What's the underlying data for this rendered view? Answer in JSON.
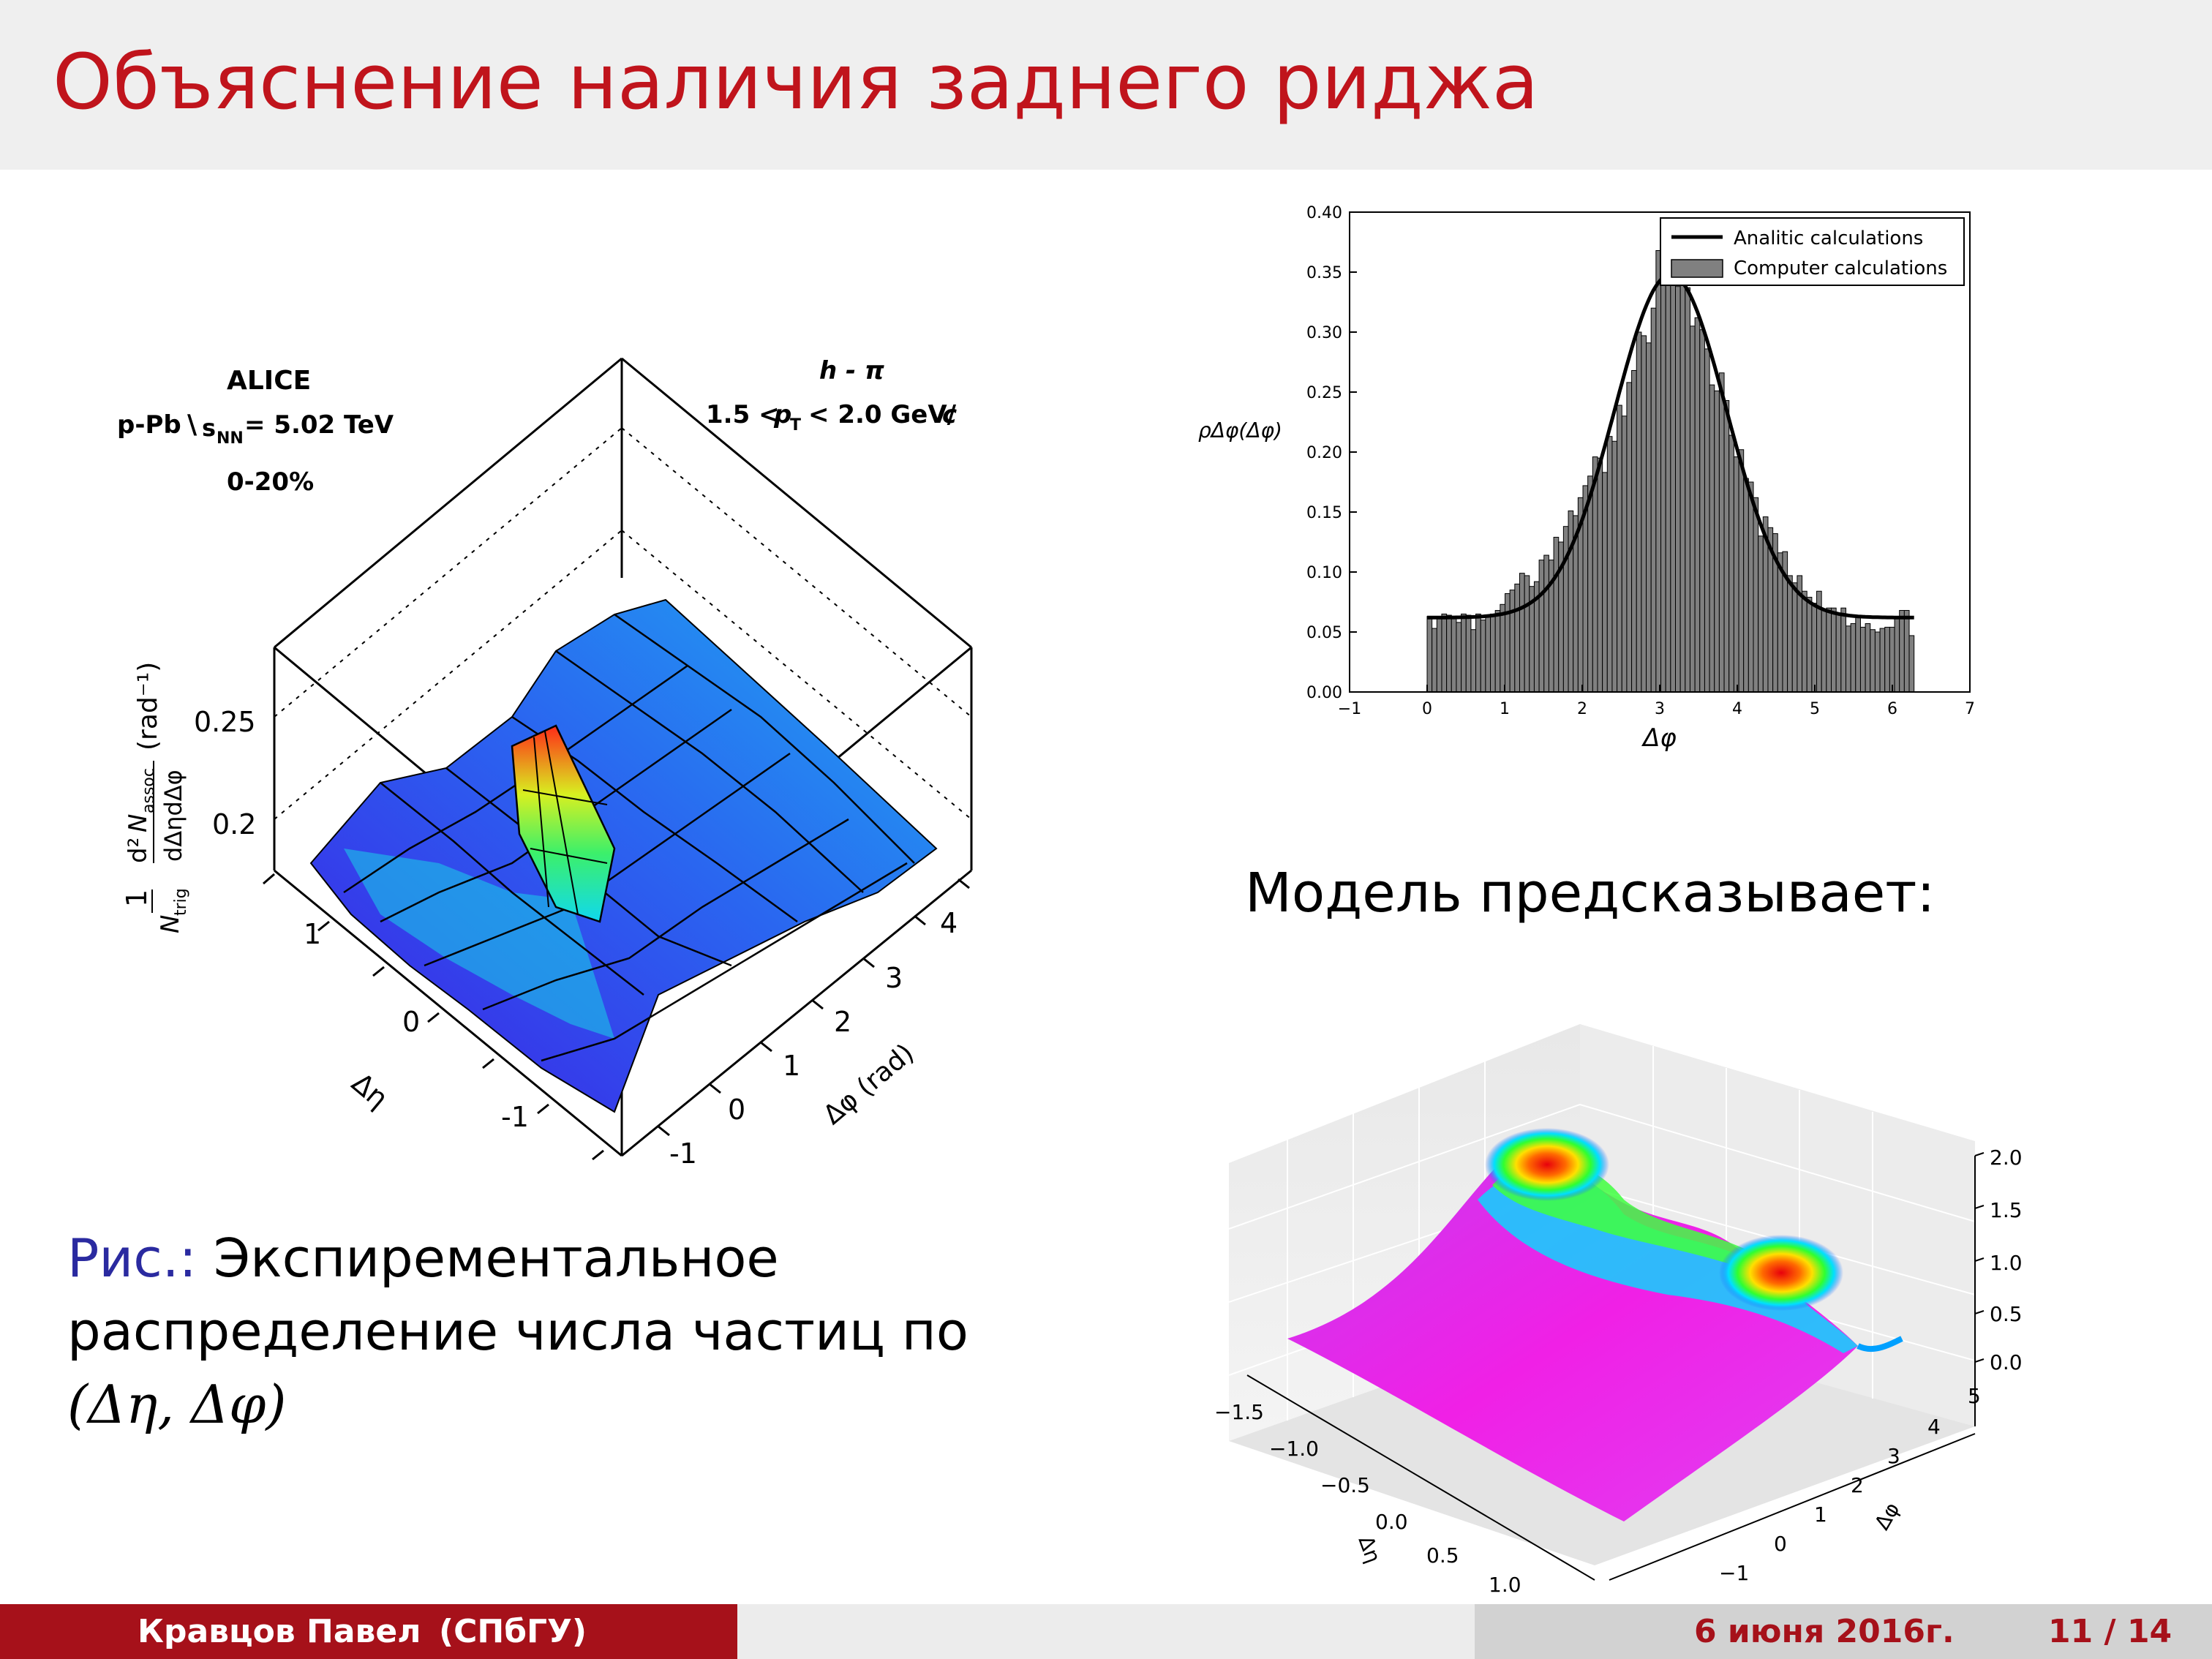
{
  "slide": {
    "title": "Объяснение наличия заднего риджа",
    "caption_label": "Рис.:",
    "caption_text": "Экспирементальное распределение числа частиц по",
    "caption_math": "(Δη, Δφ)",
    "model_text": "Модель предсказывает:"
  },
  "footer": {
    "author": "Кравцов Павел",
    "affiliation": "(СПбГУ)",
    "date": "6 июня 2016г.",
    "page": "11 / 14"
  },
  "alice": {
    "experiment": "ALICE",
    "system_pre": "p-Pb",
    "system_energy": "= 5.02 TeV",
    "centrality": "0-20%",
    "particles": "h - π",
    "pt_range_a": "1.5 <",
    "pt_range_b": "< 2.0 GeV/",
    "pt_c": "c",
    "ylabel": "(rad⁻¹)",
    "z_ticks": [
      "0.25",
      "0.2"
    ],
    "eta_ticks": [
      "1",
      "0",
      "-1"
    ],
    "eta_label": "Δη",
    "phi_ticks": [
      "-1",
      "0",
      "1",
      "2",
      "3",
      "4"
    ],
    "phi_label": "Δφ (rad)"
  },
  "model3d": {
    "z_ticks": [
      "2.0",
      "1.5",
      "1.0",
      "0.5",
      "0.0"
    ],
    "eta_ticks": [
      "−1.5",
      "−1.0",
      "−0.5",
      "0.0",
      "0.5",
      "1.0"
    ],
    "phi_ticks": [
      "5",
      "4",
      "3",
      "2",
      "1",
      "0",
      "−1"
    ],
    "eta_label": "Δη",
    "phi_label": "Δφ"
  },
  "chart_data": {
    "type": "bar",
    "xlabel": "Δφ",
    "ylabel": "ρΔφ(Δφ)",
    "xlim": [
      -1,
      7
    ],
    "ylim": [
      0,
      0.4
    ],
    "xticks": [
      "−1",
      "0",
      "1",
      "2",
      "3",
      "4",
      "5",
      "6",
      "7"
    ],
    "yticks": [
      "0.00",
      "0.05",
      "0.10",
      "0.15",
      "0.20",
      "0.25",
      "0.30",
      "0.35",
      "0.40"
    ],
    "legend": [
      "Analitic calculations",
      "Computer calculations"
    ],
    "legend_position": "top-right",
    "bin_start": 0,
    "bin_width": 0.0628,
    "series": [
      {
        "name": "Computer calculations",
        "values": [
          0.063,
          0.053,
          0.062,
          0.065,
          0.064,
          0.062,
          0.058,
          0.065,
          0.064,
          0.052,
          0.065,
          0.06,
          0.063,
          0.065,
          0.068,
          0.073,
          0.082,
          0.085,
          0.09,
          0.099,
          0.097,
          0.088,
          0.092,
          0.11,
          0.114,
          0.11,
          0.129,
          0.125,
          0.138,
          0.151,
          0.147,
          0.162,
          0.172,
          0.18,
          0.196,
          0.195,
          0.183,
          0.213,
          0.209,
          0.239,
          0.23,
          0.258,
          0.268,
          0.3,
          0.297,
          0.291,
          0.32,
          0.368,
          0.346,
          0.339,
          0.361,
          0.338,
          0.347,
          0.337,
          0.305,
          0.312,
          0.302,
          0.286,
          0.256,
          0.251,
          0.266,
          0.243,
          0.214,
          0.196,
          0.202,
          0.178,
          0.175,
          0.162,
          0.13,
          0.146,
          0.137,
          0.132,
          0.116,
          0.117,
          0.097,
          0.091,
          0.097,
          0.084,
          0.079,
          0.074,
          0.084,
          0.069,
          0.07,
          0.07,
          0.065,
          0.07,
          0.055,
          0.057,
          0.063,
          0.054,
          0.057,
          0.052,
          0.05,
          0.053,
          0.054,
          0.054,
          0.063,
          0.068,
          0.068,
          0.047
        ]
      },
      {
        "name": "Analitic calculations",
        "curve": "gaussian",
        "baseline": 0.062,
        "peak": 0.348,
        "center": 3.14,
        "sigma": 0.72
      }
    ]
  }
}
